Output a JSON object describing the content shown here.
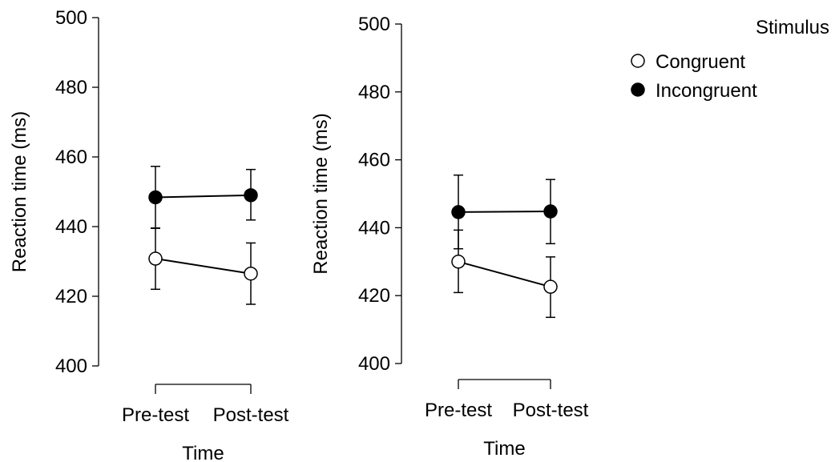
{
  "legend": {
    "title": "Stimulus",
    "entries": [
      {
        "label": "Congruent",
        "fill": "#ffffff"
      },
      {
        "label": "Incongruent",
        "fill": "#000000"
      }
    ]
  },
  "chart_data": [
    {
      "type": "line",
      "xlabel": "Time",
      "ylabel": "Reaction time (ms)",
      "categories": [
        "Pre-test",
        "Post-test"
      ],
      "ylim": [
        400,
        500
      ],
      "yticks": [
        400,
        420,
        440,
        460,
        480,
        500
      ],
      "series": [
        {
          "name": "Congruent",
          "values": [
            430.8,
            426.5
          ],
          "err_low": [
            422.0,
            417.7
          ],
          "err_high": [
            439.6,
            435.3
          ],
          "marker_fill": "#ffffff"
        },
        {
          "name": "Incongruent",
          "values": [
            448.4,
            449.0
          ],
          "err_low": [
            439.5,
            441.9
          ],
          "err_high": [
            457.3,
            456.4
          ],
          "marker_fill": "#000000"
        }
      ]
    },
    {
      "type": "line",
      "xlabel": "Time",
      "ylabel": "Reaction time (ms)",
      "categories": [
        "Pre-test",
        "Post-test"
      ],
      "ylim": [
        400,
        500
      ],
      "yticks": [
        400,
        420,
        440,
        460,
        480,
        500
      ],
      "series": [
        {
          "name": "Congruent",
          "values": [
            430.0,
            422.6
          ],
          "err_low": [
            420.9,
            413.6
          ],
          "err_high": [
            439.3,
            431.4
          ],
          "marker_fill": "#ffffff"
        },
        {
          "name": "Incongruent",
          "values": [
            444.6,
            444.8
          ],
          "err_low": [
            433.8,
            435.3
          ],
          "err_high": [
            455.5,
            454.2
          ],
          "marker_fill": "#000000"
        }
      ]
    }
  ]
}
